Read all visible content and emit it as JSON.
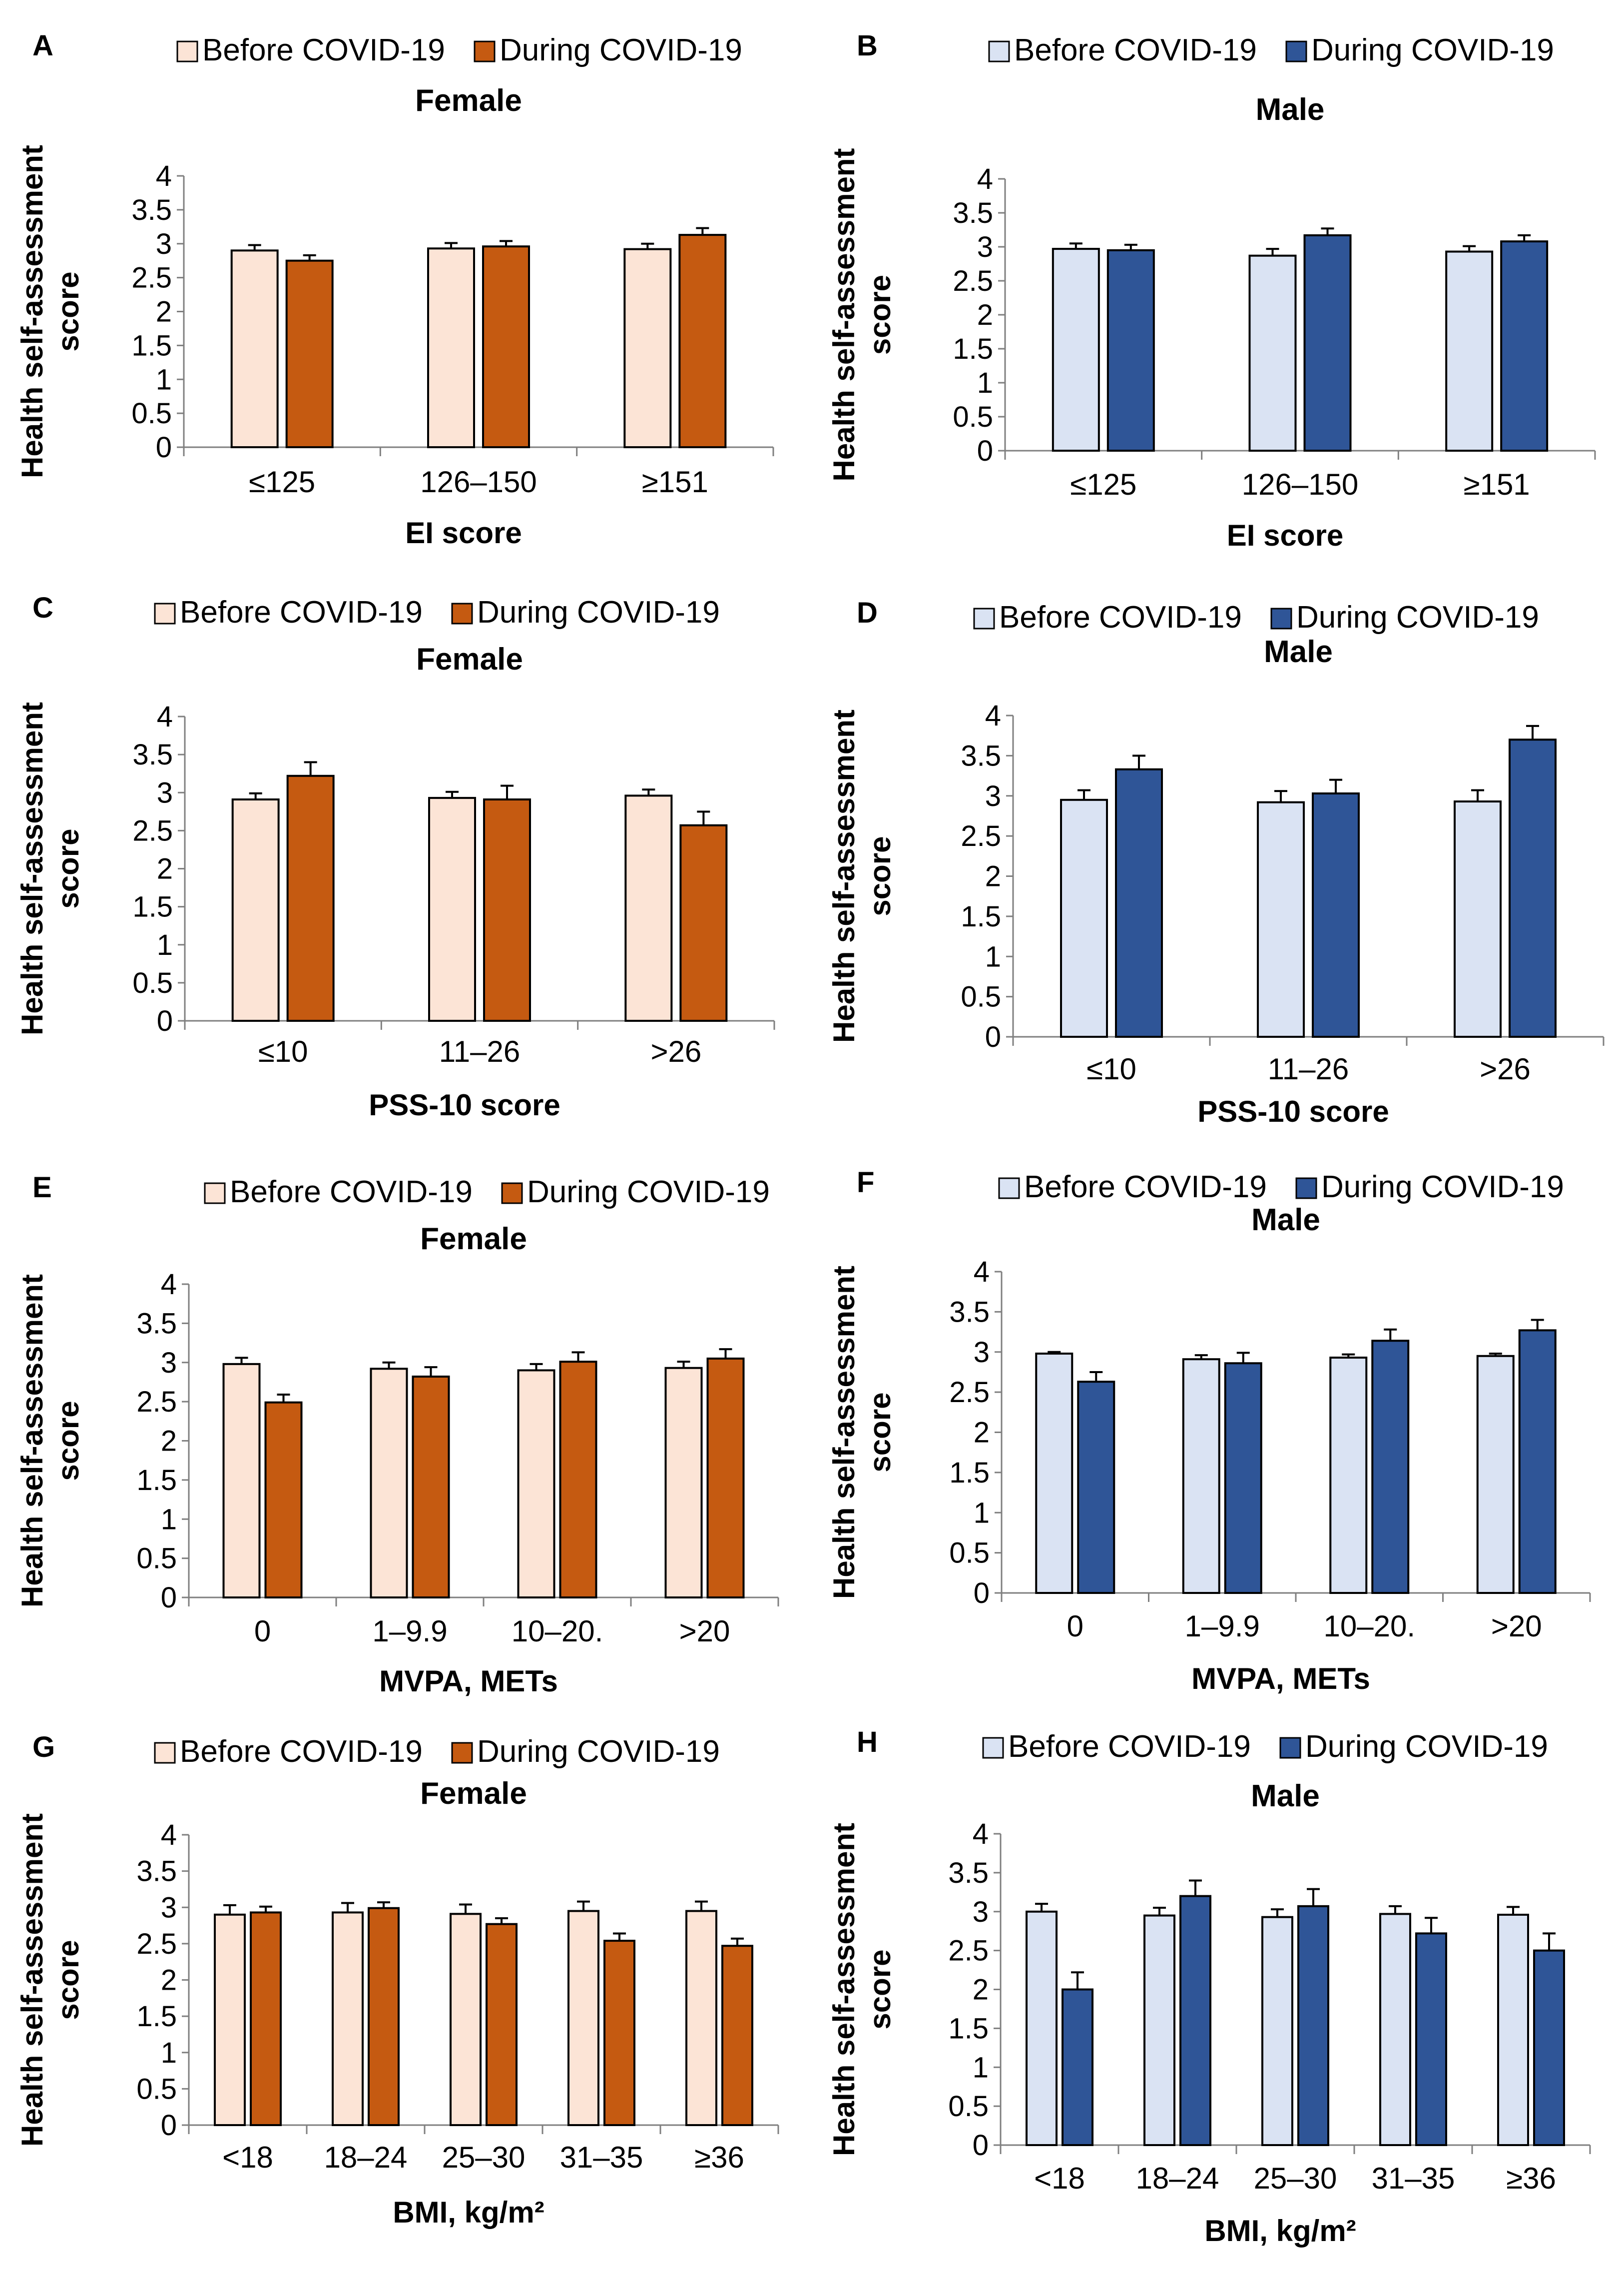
{
  "figure": {
    "description_free": true,
    "panel_colors": {
      "female": {
        "before": "#fce4d6",
        "during": "#c55a11"
      },
      "male": {
        "before": "#dae3f3",
        "during": "#2f5597"
      }
    }
  },
  "chart_data": [
    {
      "panel": "A",
      "type": "bar",
      "title": "Female",
      "legend": [
        "Before COVID-19",
        "During COVID-19"
      ],
      "xlabel": "EI score",
      "ylabel": "Health self-assessment  score",
      "ylim": [
        0,
        4
      ],
      "yticks": [
        "0",
        "0.5",
        "1",
        "1.5",
        "2",
        "2.5",
        "3",
        "3.5",
        "4"
      ],
      "categories": [
        "≤125",
        "126–150",
        "≥151"
      ],
      "series": [
        {
          "name": "Before COVID-19",
          "values": [
            2.9,
            2.93,
            2.92
          ],
          "errors": [
            0.08,
            0.08,
            0.08
          ]
        },
        {
          "name": "During COVID-19",
          "values": [
            2.75,
            2.96,
            3.13
          ],
          "errors": [
            0.08,
            0.08,
            0.1
          ]
        }
      ]
    },
    {
      "panel": "B",
      "type": "bar",
      "title": "Male",
      "legend": [
        "Before COVID-19",
        "During COVID-19"
      ],
      "xlabel": "EI score",
      "ylabel": "Health self-assessment  score",
      "ylim": [
        0,
        4
      ],
      "yticks": [
        "0",
        "0.5",
        "1",
        "1.5",
        "2",
        "2.5",
        "3",
        "3.5",
        "4"
      ],
      "categories": [
        "≤125",
        "126–150",
        "≥151"
      ],
      "series": [
        {
          "name": "Before COVID-19",
          "values": [
            2.97,
            2.87,
            2.93
          ],
          "errors": [
            0.08,
            0.1,
            0.08
          ]
        },
        {
          "name": "During COVID-19",
          "values": [
            2.95,
            3.17,
            3.08
          ],
          "errors": [
            0.08,
            0.1,
            0.09
          ]
        }
      ]
    },
    {
      "panel": "C",
      "type": "bar",
      "title": "Female",
      "legend": [
        "Before COVID-19",
        "During COVID-19"
      ],
      "xlabel": "PSS-10 score",
      "ylabel": "Health self-assessment  score",
      "ylim": [
        0,
        4
      ],
      "yticks": [
        "0",
        "0.5",
        "1",
        "1.5",
        "2",
        "2.5",
        "3",
        "3.5",
        "4"
      ],
      "categories": [
        "≤10",
        "11–26",
        ">26"
      ],
      "series": [
        {
          "name": "Before COVID-19",
          "values": [
            2.91,
            2.93,
            2.96
          ],
          "errors": [
            0.08,
            0.08,
            0.08
          ]
        },
        {
          "name": "During COVID-19",
          "values": [
            3.22,
            2.91,
            2.57
          ],
          "errors": [
            0.18,
            0.18,
            0.18
          ]
        }
      ]
    },
    {
      "panel": "D",
      "type": "bar",
      "title": "Male",
      "legend": [
        "Before COVID-19",
        "During COVID-19"
      ],
      "xlabel": "PSS-10 score",
      "ylabel": "Health self-assessment  score",
      "ylim": [
        0,
        4
      ],
      "yticks": [
        "0",
        "0.5",
        "1",
        "1.5",
        "2",
        "2.5",
        "3",
        "3.5",
        "4"
      ],
      "categories": [
        "≤10",
        "11–26",
        ">26"
      ],
      "series": [
        {
          "name": "Before COVID-19",
          "values": [
            2.95,
            2.92,
            2.93
          ],
          "errors": [
            0.12,
            0.14,
            0.14
          ]
        },
        {
          "name": "During COVID-19",
          "values": [
            3.33,
            3.03,
            3.7
          ],
          "errors": [
            0.17,
            0.17,
            0.17
          ]
        }
      ]
    },
    {
      "panel": "E",
      "type": "bar",
      "title": "Female",
      "legend": [
        "Before COVID-19",
        "During COVID-19"
      ],
      "xlabel": "MVPA, METs",
      "ylabel": "Health self-assessment  score",
      "ylim": [
        0,
        4
      ],
      "yticks": [
        "0",
        "0.5",
        "1",
        "1.5",
        "2",
        "2.5",
        "3",
        "3.5",
        "4"
      ],
      "categories": [
        "0",
        "1–9.9",
        "10–20.",
        ">20"
      ],
      "series": [
        {
          "name": "Before COVID-19",
          "values": [
            2.98,
            2.92,
            2.9,
            2.93
          ],
          "errors": [
            0.08,
            0.08,
            0.08,
            0.08
          ]
        },
        {
          "name": "During COVID-19",
          "values": [
            2.49,
            2.82,
            3.01,
            3.05
          ],
          "errors": [
            0.1,
            0.12,
            0.12,
            0.12
          ]
        }
      ]
    },
    {
      "panel": "F",
      "type": "bar",
      "title": "Male",
      "legend": [
        "Before COVID-19",
        "During COVID-19"
      ],
      "xlabel": "MVPA, METs",
      "ylabel": "Health self-assessment  score",
      "ylim": [
        0,
        4
      ],
      "yticks": [
        "0",
        "0.5",
        "1",
        "1.5",
        "2",
        "2.5",
        "3",
        "3.5",
        "4"
      ],
      "categories": [
        "0",
        "1–9.9",
        "10–20.",
        ">20"
      ],
      "series": [
        {
          "name": "Before COVID-19",
          "values": [
            2.98,
            2.91,
            2.93,
            2.95
          ],
          "errors": [
            0.02,
            0.05,
            0.04,
            0.03
          ]
        },
        {
          "name": "During COVID-19",
          "values": [
            2.63,
            2.86,
            3.14,
            3.27
          ],
          "errors": [
            0.12,
            0.13,
            0.14,
            0.13
          ]
        }
      ]
    },
    {
      "panel": "G",
      "type": "bar",
      "title": "Female",
      "legend": [
        "Before COVID-19",
        "During COVID-19"
      ],
      "xlabel": "BMI, kg/m²",
      "ylabel": "Health self-assessment  score",
      "ylim": [
        0,
        4
      ],
      "yticks": [
        "0",
        "0.5",
        "1",
        "1.5",
        "2",
        "2.5",
        "3",
        "3.5",
        "4"
      ],
      "categories": [
        "<18",
        "18–24",
        "25–30",
        "31–35",
        "≥36"
      ],
      "series": [
        {
          "name": "Before COVID-19",
          "values": [
            2.9,
            2.93,
            2.91,
            2.95,
            2.95
          ],
          "errors": [
            0.13,
            0.13,
            0.13,
            0.13,
            0.13
          ]
        },
        {
          "name": "During COVID-19",
          "values": [
            2.93,
            2.99,
            2.77,
            2.54,
            2.47
          ],
          "errors": [
            0.08,
            0.08,
            0.08,
            0.1,
            0.1
          ]
        }
      ]
    },
    {
      "panel": "H",
      "type": "bar",
      "title": "Male",
      "legend": [
        "Before COVID-19",
        "During COVID-19"
      ],
      "xlabel": "BMI, kg/m²",
      "ylabel": "Health self-assessment  score",
      "ylim": [
        0,
        4
      ],
      "yticks": [
        "0",
        "0.5",
        "1",
        "1.5",
        "2",
        "2.5",
        "3",
        "3.5",
        "4"
      ],
      "categories": [
        "<18",
        "18–24",
        "25–30",
        "31–35",
        "≥36"
      ],
      "series": [
        {
          "name": "Before COVID-19",
          "values": [
            3.0,
            2.95,
            2.93,
            2.97,
            2.96
          ],
          "errors": [
            0.1,
            0.1,
            0.1,
            0.1,
            0.1
          ]
        },
        {
          "name": "During COVID-19",
          "values": [
            2.0,
            3.2,
            3.07,
            2.72,
            2.5
          ],
          "errors": [
            0.22,
            0.2,
            0.22,
            0.2,
            0.22
          ]
        }
      ]
    }
  ]
}
